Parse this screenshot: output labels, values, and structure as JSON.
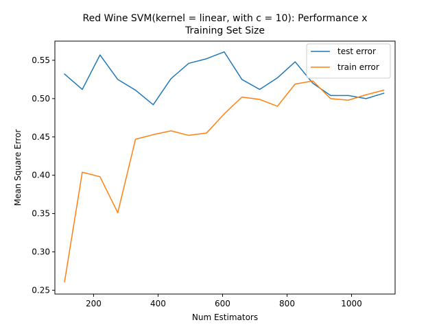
{
  "chart_data": {
    "type": "line",
    "title_lines": [
      "Red Wine SVM(kernel = linear, with c = 10): Performance x",
      "Training Set Size"
    ],
    "xlabel": "Num Estimators",
    "ylabel": "Mean Square Error",
    "xlim": [
      80,
      1135
    ],
    "ylim": [
      0.245,
      0.575
    ],
    "xticks": [
      200,
      400,
      600,
      800,
      1000
    ],
    "yticks": [
      0.25,
      0.3,
      0.35,
      0.4,
      0.45,
      0.5,
      0.55
    ],
    "xtick_labels": [
      "200",
      "400",
      "600",
      "800",
      "1000"
    ],
    "ytick_labels": [
      "0.25",
      "0.30",
      "0.35",
      "0.40",
      "0.45",
      "0.50",
      "0.55"
    ],
    "grid": false,
    "legend_position": "top-right",
    "x": [
      110,
      165,
      220,
      275,
      330,
      385,
      440,
      495,
      550,
      605,
      660,
      715,
      770,
      825,
      880,
      935,
      990,
      1045,
      1100
    ],
    "series": [
      {
        "name": "test error",
        "color": "#1f77b4",
        "values": [
          0.532,
          0.512,
          0.557,
          0.525,
          0.511,
          0.492,
          0.526,
          0.546,
          0.552,
          0.561,
          0.525,
          0.512,
          0.527,
          0.548,
          0.52,
          0.504,
          0.504,
          0.5,
          0.507
        ]
      },
      {
        "name": "train error",
        "color": "#ff7f0e",
        "values": [
          0.261,
          0.404,
          0.398,
          0.351,
          0.447,
          0.453,
          0.458,
          0.452,
          0.455,
          0.48,
          0.502,
          0.499,
          0.49,
          0.519,
          0.523,
          0.5,
          0.498,
          0.505,
          0.511
        ]
      }
    ]
  }
}
